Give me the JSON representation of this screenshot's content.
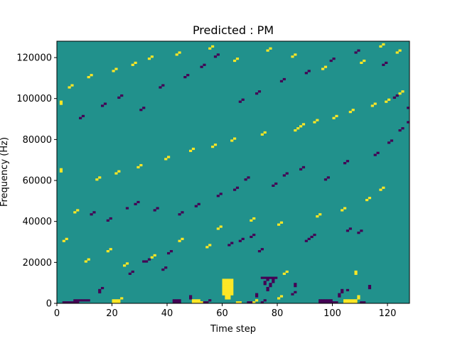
{
  "chart_data": {
    "type": "heatmap",
    "title": "Predicted : PM",
    "xlabel": "Time step",
    "ylabel": "Frequency (Hz)",
    "xlim": [
      0,
      128
    ],
    "ylim": [
      0,
      128000
    ],
    "x_ticks": [
      0,
      20,
      40,
      60,
      80,
      100,
      120
    ],
    "y_ticks": [
      0,
      20000,
      40000,
      60000,
      80000,
      100000,
      120000
    ],
    "x_tick_labels": [
      "0",
      "20",
      "40",
      "60",
      "80",
      "100",
      "120"
    ],
    "y_tick_labels": [
      "0",
      "20000",
      "40000",
      "60000",
      "80000",
      "100000",
      "120000"
    ],
    "n_time_steps": 128,
    "n_freq_bins": 128,
    "freq_bin_hz": 1000,
    "value_range": [
      -1,
      1
    ],
    "colormap": {
      "-1": "#440154",
      "0": "#21918c",
      "1": "#fde725"
    },
    "grid": false,
    "cells_low": [
      [
        2,
        0
      ],
      [
        3,
        0
      ],
      [
        4,
        0
      ],
      [
        5,
        0
      ],
      [
        6,
        0
      ],
      [
        7,
        0
      ],
      [
        6,
        1
      ],
      [
        7,
        1
      ],
      [
        8,
        1
      ],
      [
        9,
        1
      ],
      [
        10,
        1
      ],
      [
        11,
        1
      ],
      [
        15,
        5
      ],
      [
        15,
        6
      ],
      [
        16,
        7
      ],
      [
        42,
        0
      ],
      [
        43,
        0
      ],
      [
        44,
        0
      ],
      [
        42,
        1
      ],
      [
        43,
        1
      ],
      [
        44,
        1
      ],
      [
        48,
        2
      ],
      [
        48,
        3
      ],
      [
        53,
        0
      ],
      [
        54,
        0
      ],
      [
        55,
        1
      ],
      [
        69,
        0
      ],
      [
        70,
        0
      ],
      [
        74,
        0
      ],
      [
        75,
        1
      ],
      [
        72,
        3
      ],
      [
        72,
        4
      ],
      [
        76,
        6
      ],
      [
        76,
        7
      ],
      [
        77,
        8
      ],
      [
        77,
        9
      ],
      [
        78,
        10
      ],
      [
        78,
        11
      ],
      [
        75,
        9
      ],
      [
        75,
        10
      ],
      [
        76,
        11
      ],
      [
        74,
        12
      ],
      [
        75,
        12
      ],
      [
        76,
        12
      ],
      [
        77,
        12
      ],
      [
        78,
        12
      ],
      [
        79,
        12
      ],
      [
        85,
        4
      ],
      [
        86,
        5
      ],
      [
        86,
        8
      ],
      [
        86,
        9
      ],
      [
        95,
        0
      ],
      [
        96,
        0
      ],
      [
        97,
        0
      ],
      [
        98,
        0
      ],
      [
        99,
        0
      ],
      [
        100,
        0
      ],
      [
        101,
        0
      ],
      [
        95,
        1
      ],
      [
        96,
        1
      ],
      [
        97,
        1
      ],
      [
        98,
        1
      ],
      [
        99,
        1
      ],
      [
        102,
        3
      ],
      [
        102,
        4
      ],
      [
        103,
        5
      ],
      [
        103,
        6
      ],
      [
        105,
        6
      ],
      [
        110,
        0
      ],
      [
        111,
        0
      ],
      [
        113,
        7
      ],
      [
        113,
        8
      ],
      [
        26,
        14
      ],
      [
        27,
        15
      ],
      [
        31,
        20
      ],
      [
        32,
        20
      ],
      [
        33,
        21
      ],
      [
        38,
        16
      ],
      [
        39,
        17
      ],
      [
        40,
        24
      ],
      [
        41,
        25
      ],
      [
        62,
        28
      ],
      [
        63,
        29
      ],
      [
        66,
        30
      ],
      [
        67,
        31
      ],
      [
        70,
        32
      ],
      [
        71,
        33
      ],
      [
        73,
        25
      ],
      [
        74,
        26
      ],
      [
        90,
        30
      ],
      [
        91,
        31
      ],
      [
        92,
        32
      ],
      [
        93,
        33
      ],
      [
        105,
        35
      ],
      [
        106,
        36
      ],
      [
        109,
        34
      ],
      [
        110,
        35
      ],
      [
        12,
        43
      ],
      [
        13,
        44
      ],
      [
        18,
        40
      ],
      [
        19,
        41
      ],
      [
        25,
        46
      ],
      [
        28,
        48
      ],
      [
        29,
        49
      ],
      [
        35,
        45
      ],
      [
        36,
        46
      ],
      [
        44,
        43
      ],
      [
        45,
        44
      ],
      [
        50,
        47
      ],
      [
        51,
        48
      ],
      [
        58,
        52
      ],
      [
        59,
        53
      ],
      [
        64,
        55
      ],
      [
        65,
        56
      ],
      [
        68,
        60
      ],
      [
        69,
        61
      ],
      [
        78,
        57
      ],
      [
        79,
        58
      ],
      [
        82,
        62
      ],
      [
        83,
        63
      ],
      [
        88,
        65
      ],
      [
        89,
        66
      ],
      [
        97,
        60
      ],
      [
        98,
        61
      ],
      [
        104,
        68
      ],
      [
        105,
        69
      ],
      [
        115,
        72
      ],
      [
        116,
        73
      ],
      [
        120,
        78
      ],
      [
        121,
        79
      ],
      [
        124,
        84
      ],
      [
        125,
        85
      ],
      [
        8,
        90
      ],
      [
        9,
        91
      ],
      [
        16,
        96
      ],
      [
        17,
        97
      ],
      [
        22,
        100
      ],
      [
        23,
        101
      ],
      [
        30,
        94
      ],
      [
        31,
        95
      ],
      [
        37,
        105
      ],
      [
        38,
        106
      ],
      [
        46,
        110
      ],
      [
        47,
        111
      ],
      [
        52,
        115
      ],
      [
        53,
        116
      ],
      [
        57,
        120
      ],
      [
        58,
        121
      ],
      [
        66,
        98
      ],
      [
        67,
        99
      ],
      [
        72,
        102
      ],
      [
        73,
        103
      ],
      [
        81,
        108
      ],
      [
        82,
        109
      ],
      [
        90,
        112
      ],
      [
        91,
        113
      ],
      [
        99,
        118
      ],
      [
        100,
        119
      ],
      [
        108,
        122
      ],
      [
        109,
        123
      ],
      [
        118,
        116
      ],
      [
        119,
        117
      ],
      [
        122,
        100
      ],
      [
        123,
        101
      ],
      [
        127,
        95
      ],
      [
        127,
        88
      ]
    ],
    "cells_high": [
      [
        20,
        0
      ],
      [
        21,
        0
      ],
      [
        22,
        0
      ],
      [
        20,
        1
      ],
      [
        21,
        1
      ],
      [
        22,
        1
      ],
      [
        23,
        2
      ],
      [
        49,
        0
      ],
      [
        50,
        0
      ],
      [
        51,
        0
      ],
      [
        52,
        0
      ],
      [
        49,
        1
      ],
      [
        50,
        1
      ],
      [
        51,
        1
      ],
      [
        60,
        4
      ],
      [
        61,
        4
      ],
      [
        62,
        4
      ],
      [
        63,
        4
      ],
      [
        60,
        5
      ],
      [
        61,
        5
      ],
      [
        62,
        5
      ],
      [
        63,
        5
      ],
      [
        60,
        6
      ],
      [
        61,
        6
      ],
      [
        62,
        6
      ],
      [
        63,
        6
      ],
      [
        60,
        7
      ],
      [
        61,
        7
      ],
      [
        62,
        7
      ],
      [
        63,
        7
      ],
      [
        60,
        8
      ],
      [
        61,
        8
      ],
      [
        62,
        8
      ],
      [
        63,
        8
      ],
      [
        60,
        9
      ],
      [
        61,
        9
      ],
      [
        62,
        9
      ],
      [
        63,
        9
      ],
      [
        60,
        10
      ],
      [
        61,
        10
      ],
      [
        62,
        10
      ],
      [
        63,
        10
      ],
      [
        60,
        11
      ],
      [
        61,
        11
      ],
      [
        62,
        11
      ],
      [
        63,
        11
      ],
      [
        61,
        3
      ],
      [
        62,
        3
      ],
      [
        61,
        2
      ],
      [
        62,
        2
      ],
      [
        65,
        0
      ],
      [
        66,
        0
      ],
      [
        71,
        0
      ],
      [
        72,
        1
      ],
      [
        80,
        2
      ],
      [
        81,
        3
      ],
      [
        82,
        14
      ],
      [
        83,
        15
      ],
      [
        104,
        0
      ],
      [
        105,
        0
      ],
      [
        106,
        0
      ],
      [
        107,
        0
      ],
      [
        108,
        0
      ],
      [
        104,
        1
      ],
      [
        105,
        1
      ],
      [
        106,
        1
      ],
      [
        107,
        1
      ],
      [
        108,
        1
      ],
      [
        109,
        2
      ],
      [
        109,
        3
      ],
      [
        108,
        14
      ],
      [
        108,
        15
      ],
      [
        10,
        20
      ],
      [
        11,
        21
      ],
      [
        18,
        25
      ],
      [
        19,
        26
      ],
      [
        24,
        18
      ],
      [
        25,
        19
      ],
      [
        34,
        22
      ],
      [
        35,
        23
      ],
      [
        44,
        30
      ],
      [
        45,
        31
      ],
      [
        54,
        27
      ],
      [
        55,
        28
      ],
      [
        58,
        36
      ],
      [
        59,
        37
      ],
      [
        70,
        40
      ],
      [
        71,
        41
      ],
      [
        80,
        38
      ],
      [
        81,
        39
      ],
      [
        94,
        42
      ],
      [
        95,
        43
      ],
      [
        103,
        45
      ],
      [
        104,
        46
      ],
      [
        112,
        50
      ],
      [
        113,
        51
      ],
      [
        117,
        55
      ],
      [
        118,
        56
      ],
      [
        14,
        60
      ],
      [
        15,
        61
      ],
      [
        21,
        63
      ],
      [
        22,
        64
      ],
      [
        29,
        66
      ],
      [
        30,
        67
      ],
      [
        39,
        70
      ],
      [
        40,
        71
      ],
      [
        48,
        74
      ],
      [
        49,
        75
      ],
      [
        56,
        76
      ],
      [
        57,
        77
      ],
      [
        63,
        79
      ],
      [
        64,
        80
      ],
      [
        74,
        82
      ],
      [
        75,
        83
      ],
      [
        86,
        84
      ],
      [
        87,
        85
      ],
      [
        88,
        86
      ],
      [
        89,
        87
      ],
      [
        93,
        88
      ],
      [
        94,
        89
      ],
      [
        100,
        90
      ],
      [
        101,
        91
      ],
      [
        106,
        93
      ],
      [
        107,
        94
      ],
      [
        114,
        96
      ],
      [
        115,
        97
      ],
      [
        119,
        98
      ],
      [
        120,
        99
      ],
      [
        124,
        102
      ],
      [
        125,
        103
      ],
      [
        4,
        105
      ],
      [
        5,
        106
      ],
      [
        11,
        110
      ],
      [
        12,
        111
      ],
      [
        20,
        113
      ],
      [
        21,
        114
      ],
      [
        27,
        116
      ],
      [
        28,
        117
      ],
      [
        33,
        119
      ],
      [
        34,
        120
      ],
      [
        43,
        121
      ],
      [
        44,
        122
      ],
      [
        55,
        124
      ],
      [
        56,
        125
      ],
      [
        64,
        118
      ],
      [
        65,
        119
      ],
      [
        76,
        123
      ],
      [
        77,
        124
      ],
      [
        85,
        120
      ],
      [
        86,
        121
      ],
      [
        96,
        114
      ],
      [
        97,
        115
      ],
      [
        110,
        117
      ],
      [
        111,
        118
      ],
      [
        117,
        125
      ],
      [
        118,
        126
      ],
      [
        123,
        122
      ],
      [
        124,
        123
      ],
      [
        2,
        30
      ],
      [
        3,
        31
      ],
      [
        6,
        44
      ],
      [
        7,
        45
      ],
      [
        1,
        64
      ],
      [
        1,
        65
      ],
      [
        1,
        97
      ],
      [
        1,
        98
      ]
    ]
  }
}
